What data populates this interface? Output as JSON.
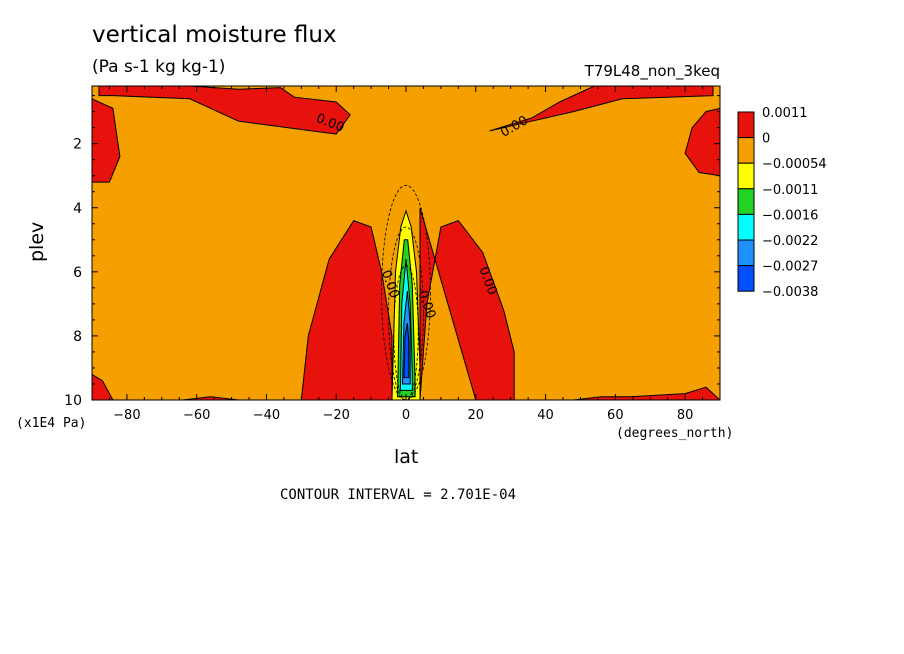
{
  "chart_data": {
    "type": "heatmap",
    "title": "vertical moisture flux",
    "units": "(Pa s-1 kg kg-1)",
    "run_label": "T79L48_non_3keq",
    "xlabel": "lat",
    "xunit": "(degrees_north)",
    "ylabel": "plev",
    "yunit": "(x1E4 Pa)",
    "contour_interval_text": "CONTOUR INTERVAL = 2.701E-04",
    "xlim": [
      -90,
      90
    ],
    "ylim": [
      10,
      0.2
    ],
    "xticks": [
      -80,
      -60,
      -40,
      -20,
      0,
      20,
      40,
      60,
      80
    ],
    "yticks": [
      2,
      4,
      6,
      8,
      10
    ],
    "legend": {
      "placement": "right",
      "levels": [
        "0.0011",
        "0",
        "-0.00054",
        "-0.0011",
        "-0.0016",
        "-0.0022",
        "-0.0027",
        "-0.0038"
      ],
      "colors": [
        "#e8120c",
        "#f5a000",
        "#ffff00",
        "#22d322",
        "#00ffff",
        "#1e90ff",
        "#0050ff"
      ]
    },
    "contour_labels": [
      {
        "text": "0.00",
        "x": -26,
        "y": 1.3
      },
      {
        "text": "0.00",
        "x": 28,
        "y": 1.8
      },
      {
        "text": "0.00",
        "x": -7,
        "y": 6.0
      },
      {
        "text": "0.00",
        "x": 21,
        "y": 5.9
      },
      {
        "text": "-0.00",
        "x": 3,
        "y": 6.5
      }
    ],
    "regions": [
      {
        "name": "positive-flux-sh-upper",
        "value_sign": "positive",
        "lon": [
          -88,
          -62,
          -48,
          -36,
          -32,
          -20,
          -16,
          -20,
          -48,
          -62,
          -84,
          -88
        ],
        "lev": [
          0.2,
          0.2,
          0.3,
          0.25,
          0.55,
          0.7,
          1.1,
          1.7,
          1.3,
          0.6,
          0.5,
          0.5
        ]
      },
      {
        "name": "positive-flux-nh-upper",
        "value_sign": "positive",
        "lon": [
          24,
          36,
          44,
          54,
          88,
          88,
          62,
          48,
          36,
          24
        ],
        "lev": [
          1.6,
          1.2,
          0.7,
          0.2,
          0.2,
          0.5,
          0.6,
          1.0,
          1.3,
          1.6
        ]
      },
      {
        "name": "positive-flux-west-edge",
        "value_sign": "positive",
        "lon": [
          -90,
          -84,
          -82,
          -85,
          -90
        ],
        "lev": [
          0.6,
          0.9,
          2.4,
          3.2,
          3.2
        ]
      },
      {
        "name": "positive-flux-east-edge",
        "value_sign": "positive",
        "lon": [
          90,
          90,
          84,
          80,
          82,
          86,
          90
        ],
        "lev": [
          0.9,
          3.0,
          2.9,
          2.3,
          1.5,
          1.0,
          0.9
        ]
      },
      {
        "name": "positive-flux-sh-tower",
        "value_sign": "positive",
        "lon": [
          -30,
          -28,
          -22,
          -15,
          -10,
          -7,
          -4,
          -4,
          -12,
          -30
        ],
        "lev": [
          10,
          8.0,
          5.6,
          4.4,
          4.6,
          6.0,
          8.0,
          10,
          10,
          10
        ]
      },
      {
        "name": "positive-flux-nh-tower",
        "value_sign": "positive",
        "lon": [
          4,
          6,
          10,
          15,
          22,
          28,
          31,
          31,
          20,
          4
        ],
        "lev": [
          10,
          7.0,
          4.6,
          4.4,
          5.4,
          7.2,
          8.5,
          10,
          10,
          4
        ]
      },
      {
        "name": "positive-flux-sfc-south",
        "value_sign": "positive",
        "lon": [
          -90,
          -87,
          -84,
          -90
        ],
        "lev": [
          9.2,
          9.4,
          10,
          10
        ]
      },
      {
        "name": "positive-flux-sfc-south2",
        "value_sign": "positive",
        "lon": [
          -64,
          -56,
          -48,
          -64
        ],
        "lev": [
          10,
          9.9,
          10,
          10
        ]
      },
      {
        "name": "positive-flux-sfc-north",
        "value_sign": "positive",
        "lon": [
          48,
          56,
          64,
          80,
          86,
          88,
          90,
          48
        ],
        "lev": [
          10,
          9.9,
          9.9,
          9.8,
          9.6,
          9.8,
          10,
          10
        ]
      },
      {
        "name": "upward-flux-core-yellow",
        "value_sign": "negative",
        "lon": [
          -4,
          -3,
          -1.5,
          0,
          1.5,
          3,
          4,
          4,
          -4
        ],
        "lev": [
          10,
          6.0,
          4.6,
          4.1,
          4.6,
          6.0,
          9.0,
          10,
          10
        ]
      },
      {
        "name": "upward-flux-core-green",
        "value_sign": "negative",
        "lon": [
          -2.4,
          -1.8,
          -0.5,
          0.5,
          1.8,
          2.6,
          2.6,
          -2.4
        ],
        "lev": [
          9.9,
          6.4,
          5.0,
          5.0,
          6.4,
          9.4,
          9.9,
          9.9
        ]
      },
      {
        "name": "upward-flux-core-cyan",
        "value_sign": "negative",
        "lon": [
          -1.6,
          -1.2,
          0,
          1.2,
          1.8,
          1.8,
          -1.6
        ],
        "lev": [
          9.7,
          7.0,
          5.6,
          7.0,
          9.2,
          9.7,
          9.7
        ]
      },
      {
        "name": "upward-flux-core-blue",
        "value_sign": "negative",
        "lon": [
          -1.0,
          -0.6,
          0.4,
          1.2,
          1.2,
          -1.0
        ],
        "lev": [
          9.5,
          7.6,
          6.6,
          7.6,
          9.5,
          9.5
        ]
      },
      {
        "name": "upward-flux-core-deep",
        "value_sign": "negative",
        "lon": [
          -0.6,
          -0.3,
          0.4,
          0.8,
          0.8,
          -0.6
        ],
        "lev": [
          9.3,
          8.0,
          7.6,
          8.2,
          9.3,
          9.3
        ]
      }
    ]
  }
}
